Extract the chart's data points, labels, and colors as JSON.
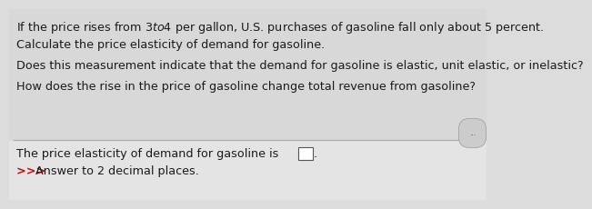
{
  "line1": "If the price rises from $3 to $4 per gallon, U.S. purchases of gasoline fall only about 5 percent.",
  "line2": "Calculate the price elasticity of demand for gasoline.",
  "line3": "Does this measurement indicate that the demand for gasoline is elastic, unit elastic, or inelastic?",
  "line4": "How does the rise in the price of gasoline change total revenue from gasoline?",
  "bottom_prefix": "The price elasticity of demand for gasoline is ",
  "bottom_line2_prefix": ">>> ",
  "bottom_line2_suffix": "Answer to 2 decimal places.",
  "bg_color": "#dcdcdc",
  "top_bg": "#dcdcdc",
  "bottom_bg": "#e8e8e8",
  "text_color": "#1a1a1a",
  "red_color": "#cc0000",
  "font_size": 9.2,
  "dots_text": "...",
  "sep_color": "#aaaaaa"
}
